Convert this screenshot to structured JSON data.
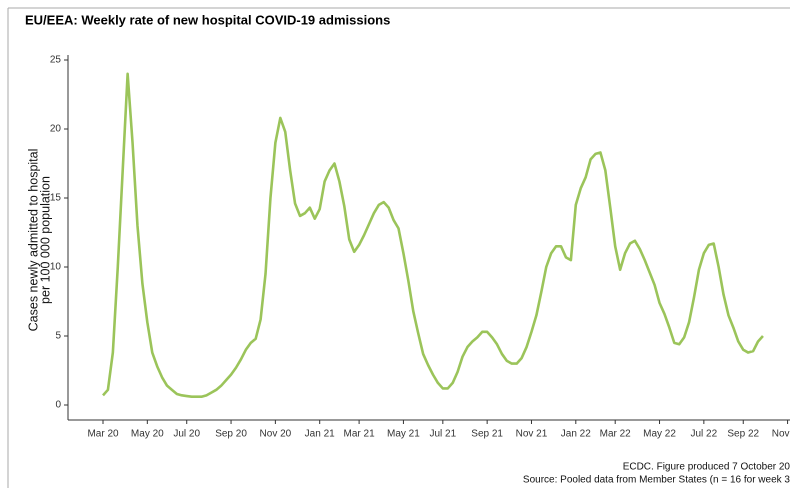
{
  "chart_data": {
    "type": "line",
    "title": "EU/EEA: Weekly rate of new hospital COVID-19 admissions",
    "ylabel": [
      "Cases newly admitted to hospital",
      "per 100 000 population"
    ],
    "footer": [
      "ECDC. Figure produced 7 October 20",
      "Source: Pooled data from Member States (n = 16 for week 3"
    ],
    "categories": [
      "Mar 20",
      null,
      null,
      null,
      null,
      null,
      null,
      null,
      null,
      "May 20",
      null,
      null,
      null,
      null,
      null,
      null,
      null,
      "Jul 20",
      null,
      null,
      null,
      null,
      null,
      null,
      null,
      null,
      "Sep 20",
      null,
      null,
      null,
      null,
      null,
      null,
      null,
      null,
      "Nov 20",
      null,
      null,
      null,
      null,
      null,
      null,
      null,
      null,
      "Jan 21",
      null,
      null,
      null,
      null,
      null,
      null,
      null,
      "Mar 21",
      null,
      null,
      null,
      null,
      null,
      null,
      null,
      null,
      "May 21",
      null,
      null,
      null,
      null,
      null,
      null,
      null,
      "Jul 21",
      null,
      null,
      null,
      null,
      null,
      null,
      null,
      null,
      "Sep 21",
      null,
      null,
      null,
      null,
      null,
      null,
      null,
      null,
      "Nov 21",
      null,
      null,
      null,
      null,
      null,
      null,
      null,
      null,
      "Jan 22",
      null,
      null,
      null,
      null,
      null,
      null,
      null,
      "Mar 22",
      null,
      null,
      null,
      null,
      null,
      null,
      null,
      null,
      "May 22",
      null,
      null,
      null,
      null,
      null,
      null,
      null,
      null,
      "Jul 22",
      null,
      null,
      null,
      null,
      null,
      null,
      null,
      "Sep 22",
      null,
      null,
      null,
      null,
      null,
      null,
      null,
      null,
      "Nov 22"
    ],
    "series": [
      {
        "name": "Weekly rate",
        "color": "#9bc45a",
        "values": [
          0.7,
          1.1,
          3.8,
          10,
          17,
          24,
          19,
          13,
          8.8,
          6,
          3.8,
          2.8,
          2,
          1.4,
          1.1,
          0.8,
          0.7,
          0.65,
          0.6,
          0.6,
          0.6,
          0.7,
          0.9,
          1.1,
          1.4,
          1.8,
          2.2,
          2.7,
          3.3,
          4,
          4.5,
          4.8,
          6.2,
          9.5,
          15,
          19,
          20.8,
          19.8,
          17,
          14.6,
          13.7,
          13.9,
          14.3,
          13.5,
          14.2,
          16.2,
          17,
          17.5,
          16.2,
          14.4,
          12,
          11.1,
          11.6,
          12.3,
          13.1,
          13.9,
          14.5,
          14.7,
          14.3,
          13.4,
          12.8,
          11,
          9,
          6.8,
          5.2,
          3.7,
          2.9,
          2.2,
          1.6,
          1.2,
          1.2,
          1.6,
          2.4,
          3.5,
          4.2,
          4.6,
          4.9,
          5.3,
          5.3,
          4.9,
          4.4,
          3.7,
          3.2,
          3,
          3,
          3.4,
          4.2,
          5.3,
          6.5,
          8.2,
          10,
          11,
          11.5,
          11.5,
          10.7,
          10.5,
          14.5,
          15.7,
          16.5,
          17.8,
          18.2,
          18.3,
          17,
          14.3,
          11.5,
          9.8,
          11,
          11.7,
          11.9,
          11.3,
          10.5,
          9.6,
          8.7,
          7.4,
          6.6,
          5.6,
          4.5,
          4.4,
          4.9,
          6,
          7.8,
          9.8,
          11,
          11.6,
          11.7,
          10,
          8,
          6.5,
          5.6,
          4.6,
          4,
          3.8,
          3.9,
          4.6,
          5,
          null,
          null,
          null,
          null,
          null
        ]
      }
    ],
    "ylim": [
      0,
      25
    ],
    "yticks": [
      0,
      5,
      10,
      15,
      20,
      25
    ],
    "grid": false
  }
}
